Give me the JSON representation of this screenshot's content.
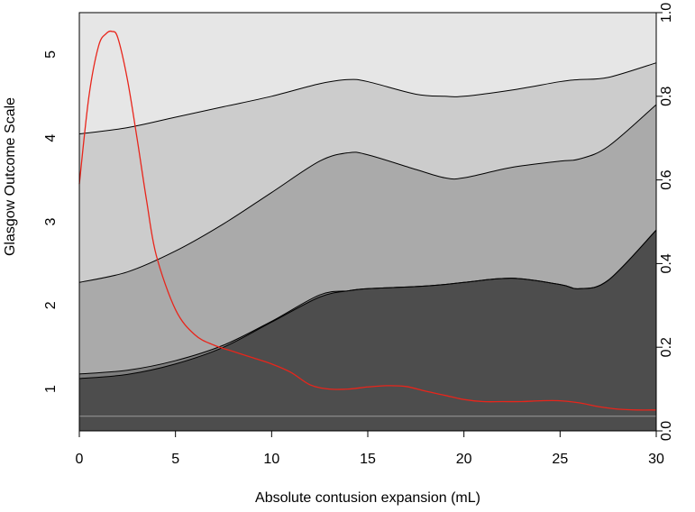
{
  "chart_data": {
    "type": "area",
    "xlabel": "Absolute contusion expansion (mL)",
    "ylabel": "Glasgow Outcome Scale",
    "xlim": [
      0,
      30
    ],
    "ylim_right": [
      0,
      1
    ],
    "x_ticks": [
      "0",
      "5",
      "10",
      "15",
      "20",
      "25",
      "30"
    ],
    "x_tick_values": [
      0,
      5,
      10,
      15,
      20,
      25,
      30
    ],
    "left_ticks": [
      "1",
      "2",
      "3",
      "4",
      "5"
    ],
    "left_tick_values": [
      0.1,
      0.3,
      0.5,
      0.7,
      0.9
    ],
    "right_ticks": [
      "0.0",
      "0.2",
      "0.4",
      "0.6",
      "0.8",
      "1.0"
    ],
    "right_tick_values": [
      0,
      0.2,
      0.4,
      0.6,
      0.8,
      1.0
    ],
    "x": [
      0,
      2.5,
      5,
      7.5,
      10,
      12.5,
      14,
      15,
      17.5,
      19,
      20,
      22.5,
      25,
      26,
      27.5,
      30
    ],
    "boundaries": [
      {
        "values": [
          0.125,
          0.135,
          0.16,
          0.2,
          0.26,
          0.32,
          0.335,
          0.34,
          0.345,
          0.35,
          0.355,
          0.365,
          0.35,
          0.34,
          0.36,
          0.48
        ]
      },
      {
        "values": [
          0.136,
          0.145,
          0.168,
          0.205,
          0.262,
          0.325,
          0.335,
          0.34,
          0.345,
          0.35,
          0.355,
          0.365,
          0.35,
          0.34,
          0.36,
          0.48
        ]
      },
      {
        "values": [
          0.355,
          0.38,
          0.43,
          0.495,
          0.57,
          0.645,
          0.665,
          0.66,
          0.625,
          0.605,
          0.605,
          0.63,
          0.645,
          0.65,
          0.68,
          0.78
        ]
      },
      {
        "values": [
          0.71,
          0.725,
          0.75,
          0.775,
          0.8,
          0.83,
          0.84,
          0.835,
          0.805,
          0.8,
          0.8,
          0.815,
          0.835,
          0.84,
          0.845,
          0.88
        ]
      }
    ],
    "fill_colors": [
      "#4d4d4d",
      "#7e7e7e",
      "#aaaaaa",
      "#cccccc",
      "#e6e6e6"
    ],
    "reference_line": {
      "value": 0.035,
      "color": "#9a9a9a"
    },
    "density_curve": {
      "color": "#e8251b",
      "x": [
        0,
        0.5,
        1,
        1.4,
        1.7,
        2,
        2.5,
        3,
        3.5,
        4,
        5,
        6,
        7,
        8,
        9,
        10,
        11,
        12,
        13,
        14,
        15,
        16,
        17,
        18,
        19,
        20,
        21,
        22,
        23,
        24,
        25,
        26,
        27,
        28,
        29,
        30
      ],
      "values": [
        0.59,
        0.8,
        0.92,
        0.95,
        0.955,
        0.94,
        0.84,
        0.7,
        0.55,
        0.42,
        0.29,
        0.23,
        0.205,
        0.19,
        0.175,
        0.16,
        0.14,
        0.11,
        0.1,
        0.1,
        0.105,
        0.108,
        0.106,
        0.095,
        0.085,
        0.075,
        0.07,
        0.07,
        0.07,
        0.072,
        0.072,
        0.067,
        0.058,
        0.052,
        0.05,
        0.05
      ]
    }
  }
}
